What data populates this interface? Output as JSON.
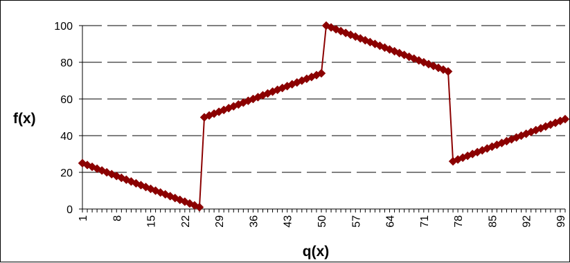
{
  "chart_data": {
    "type": "line",
    "title": "",
    "xlabel": "q(x)",
    "ylabel": "f(x)",
    "xlim": [
      1,
      100
    ],
    "ylim": [
      0,
      100
    ],
    "y_ticks": [
      0,
      20,
      40,
      60,
      80,
      100
    ],
    "x_tick_labels": [
      1,
      8,
      15,
      22,
      29,
      36,
      43,
      50,
      57,
      64,
      71,
      78,
      85,
      92,
      99
    ],
    "grid": "horizontal-dashed",
    "legend": "none",
    "series": [
      {
        "color": "#8B0000",
        "marker": "diamond",
        "x": [
          1,
          2,
          3,
          4,
          5,
          6,
          7,
          8,
          9,
          10,
          11,
          12,
          13,
          14,
          15,
          16,
          17,
          18,
          19,
          20,
          21,
          22,
          23,
          24,
          25,
          26,
          27,
          28,
          29,
          30,
          31,
          32,
          33,
          34,
          35,
          36,
          37,
          38,
          39,
          40,
          41,
          42,
          43,
          44,
          45,
          46,
          47,
          48,
          49,
          50,
          51,
          52,
          53,
          54,
          55,
          56,
          57,
          58,
          59,
          60,
          61,
          62,
          63,
          64,
          65,
          66,
          67,
          68,
          69,
          70,
          71,
          72,
          73,
          74,
          75,
          76,
          77,
          78,
          79,
          80,
          81,
          82,
          83,
          84,
          85,
          86,
          87,
          88,
          89,
          90,
          91,
          92,
          93,
          94,
          95,
          96,
          97,
          98,
          99,
          100
        ],
        "y": [
          25,
          24,
          23,
          22,
          21,
          20,
          19,
          18,
          17,
          16,
          15,
          14,
          13,
          12,
          11,
          10,
          9,
          8,
          7,
          6,
          5,
          4,
          3,
          2,
          1,
          50,
          51,
          52,
          53,
          54,
          55,
          56,
          57,
          58,
          59,
          60,
          61,
          62,
          63,
          64,
          65,
          66,
          67,
          68,
          69,
          70,
          71,
          72,
          73,
          74,
          100,
          99,
          98,
          97,
          96,
          95,
          94,
          93,
          92,
          91,
          90,
          89,
          88,
          87,
          86,
          85,
          84,
          83,
          82,
          81,
          80,
          79,
          78,
          77,
          76,
          75,
          26,
          27,
          28,
          29,
          30,
          31,
          32,
          33,
          34,
          35,
          36,
          37,
          38,
          39,
          40,
          41,
          42,
          43,
          44,
          45,
          46,
          47,
          48,
          49
        ]
      }
    ]
  }
}
